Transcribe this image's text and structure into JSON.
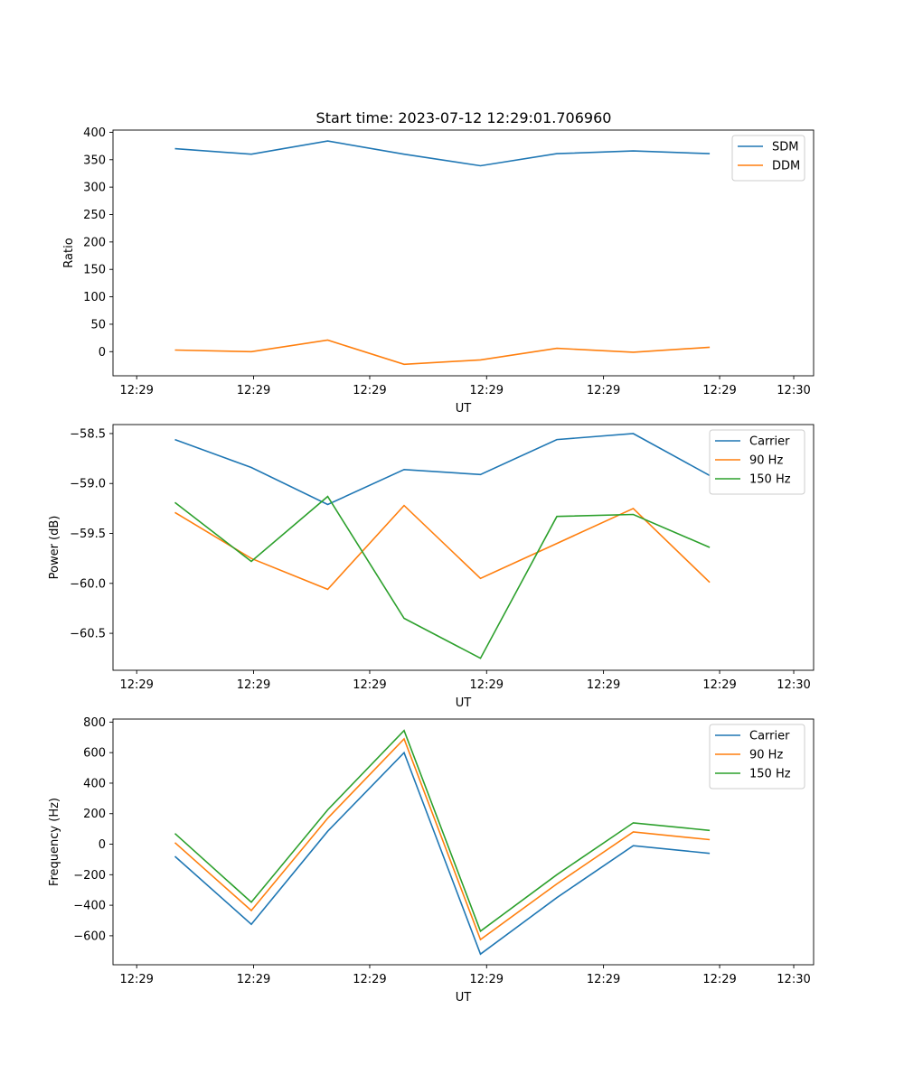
{
  "figure_title": "Start time: 2023-07-12 12:29:01.706960",
  "colors": {
    "blue": "#1f77b4",
    "orange": "#ff7f0e",
    "green": "#2ca02c"
  },
  "chart_data": [
    {
      "type": "line",
      "title": "Start time: 2023-07-12 12:29:01.706960",
      "xlabel": "UT",
      "ylabel": "Ratio",
      "x_tick_labels": [
        "12:29",
        "12:29",
        "12:29",
        "12:29",
        "12:29",
        "12:29",
        "12:30"
      ],
      "x": [
        1,
        2,
        3,
        4,
        5,
        6,
        7,
        8
      ],
      "xlim": [
        0.19,
        9.36
      ],
      "ylim": [
        -44,
        404
      ],
      "yticks": [
        0,
        50,
        100,
        150,
        200,
        250,
        300,
        350,
        400
      ],
      "ytick_labels": [
        "0",
        "50",
        "100",
        "150",
        "200",
        "250",
        "300",
        "350",
        "400"
      ],
      "legend": "top-right",
      "series": [
        {
          "name": "SDM",
          "color": "#1f77b4",
          "values": [
            370,
            360,
            384,
            360,
            339,
            361,
            366,
            361
          ]
        },
        {
          "name": "DDM",
          "color": "#ff7f0e",
          "values": [
            3,
            0,
            21,
            -23,
            -15,
            6,
            -1,
            8
          ]
        }
      ]
    },
    {
      "type": "line",
      "xlabel": "UT",
      "ylabel": "Power (dB)",
      "x_tick_labels": [
        "12:29",
        "12:29",
        "12:29",
        "12:29",
        "12:29",
        "12:29",
        "12:30"
      ],
      "x": [
        1,
        2,
        3,
        4,
        5,
        6,
        7,
        8
      ],
      "xlim": [
        0.19,
        9.36
      ],
      "ylim": [
        -60.87,
        -58.41
      ],
      "yticks": [
        -60.5,
        -60.0,
        -59.5,
        -59.0,
        -58.5
      ],
      "ytick_labels": [
        "−60.5",
        "−60.0",
        "−59.5",
        "−59.0",
        "−58.5"
      ],
      "legend": "top-right",
      "series": [
        {
          "name": "Carrier",
          "color": "#1f77b4",
          "values": [
            -58.56,
            -58.84,
            -59.21,
            -58.86,
            -58.91,
            -58.56,
            -58.5,
            -58.92
          ]
        },
        {
          "name": "90 Hz",
          "color": "#ff7f0e",
          "values": [
            -59.29,
            -59.75,
            -60.06,
            -59.22,
            -59.95,
            -59.6,
            -59.25,
            -59.99
          ]
        },
        {
          "name": "150 Hz",
          "color": "#2ca02c",
          "values": [
            -59.19,
            -59.78,
            -59.13,
            -60.35,
            -60.75,
            -59.33,
            -59.31,
            -59.64
          ]
        }
      ]
    },
    {
      "type": "line",
      "xlabel": "UT",
      "ylabel": "Frequency (Hz)",
      "x_tick_labels": [
        "12:29",
        "12:29",
        "12:29",
        "12:29",
        "12:29",
        "12:29",
        "12:30"
      ],
      "x": [
        1,
        2,
        3,
        4,
        5,
        6,
        7,
        8
      ],
      "xlim": [
        0.19,
        9.36
      ],
      "ylim": [
        -790,
        820
      ],
      "yticks": [
        -600,
        -400,
        -200,
        0,
        200,
        400,
        600,
        800
      ],
      "ytick_labels": [
        "−600",
        "−400",
        "−200",
        "0",
        "200",
        "400",
        "600",
        "800"
      ],
      "legend": "top-right",
      "series": [
        {
          "name": "Carrier",
          "color": "#1f77b4",
          "values": [
            -80,
            -525,
            85,
            600,
            -720,
            -350,
            -10,
            -60
          ]
        },
        {
          "name": "90 Hz",
          "color": "#ff7f0e",
          "values": [
            10,
            -435,
            170,
            690,
            -625,
            -260,
            80,
            30
          ]
        },
        {
          "name": "150 Hz",
          "color": "#2ca02c",
          "values": [
            70,
            -380,
            225,
            745,
            -570,
            -200,
            140,
            90
          ]
        }
      ]
    }
  ]
}
